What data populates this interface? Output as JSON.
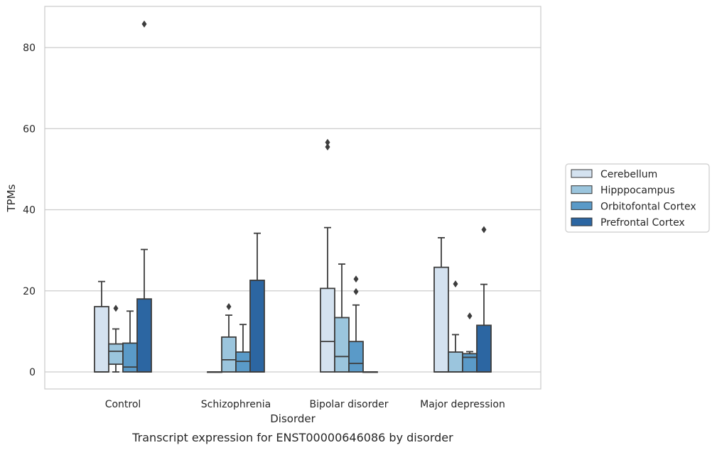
{
  "chart_data": {
    "type": "box",
    "title": "Transcript expression for ENST00000646086 by disorder",
    "xlabel": "Disorder",
    "ylabel": "TPMs",
    "ylim": [
      -4.2,
      90.5
    ],
    "yticks": [
      0,
      20,
      40,
      60,
      80
    ],
    "grid": true,
    "legend_position": "right",
    "categories": [
      "Control",
      "Schizophrenia",
      "Bipolar disorder",
      "Major depression"
    ],
    "series": [
      {
        "name": "Cerebellum",
        "color": "#d4e2f0",
        "boxes": [
          {
            "whislo": 0,
            "q1": 0,
            "med": 0,
            "q3": 16.1,
            "whishi": 22.3,
            "fliers": []
          },
          {
            "whislo": 0,
            "q1": 0,
            "med": 0,
            "q3": 0,
            "whishi": 0,
            "fliers": []
          },
          {
            "whislo": 0,
            "q1": 0,
            "med": 7.5,
            "q3": 20.6,
            "whishi": 35.6,
            "fliers": [
              55.5,
              56.6
            ]
          },
          {
            "whislo": 0,
            "q1": 0,
            "med": 0,
            "q3": 25.8,
            "whishi": 33.1,
            "fliers": []
          }
        ]
      },
      {
        "name": "Hipppocampus",
        "color": "#9bc5dd",
        "boxes": [
          {
            "whislo": 0,
            "q1": 1.9,
            "med": 5.1,
            "q3": 6.9,
            "whishi": 10.6,
            "fliers": [
              15.7
            ]
          },
          {
            "whislo": 0,
            "q1": 0,
            "med": 3.0,
            "q3": 8.6,
            "whishi": 14.0,
            "fliers": [
              16.1
            ]
          },
          {
            "whislo": 0,
            "q1": 0,
            "med": 3.8,
            "q3": 13.4,
            "whishi": 26.6,
            "fliers": []
          },
          {
            "whislo": 0,
            "q1": 0,
            "med": 0,
            "q3": 4.9,
            "whishi": 9.2,
            "fliers": [
              21.7
            ]
          }
        ]
      },
      {
        "name": "Orbitofontal Cortex",
        "color": "#5a9ac8",
        "boxes": [
          {
            "whislo": 0,
            "q1": 0,
            "med": 1.2,
            "q3": 7.1,
            "whishi": 15.0,
            "fliers": []
          },
          {
            "whislo": 0,
            "q1": 0,
            "med": 2.6,
            "q3": 4.9,
            "whishi": 11.7,
            "fliers": []
          },
          {
            "whislo": 0,
            "q1": 0,
            "med": 2.1,
            "q3": 7.5,
            "whishi": 16.5,
            "fliers": [
              19.8,
              22.9
            ]
          },
          {
            "whislo": 0,
            "q1": 0,
            "med": 3.6,
            "q3": 4.5,
            "whishi": 5.0,
            "fliers": [
              13.8
            ]
          }
        ]
      },
      {
        "name": "Prefrontal Cortex",
        "color": "#2c66a2",
        "boxes": [
          {
            "whislo": 0,
            "q1": 0,
            "med": 0,
            "q3": 18.0,
            "whishi": 30.2,
            "fliers": [
              85.8
            ]
          },
          {
            "whislo": 0,
            "q1": 0,
            "med": 0,
            "q3": 22.6,
            "whishi": 34.2,
            "fliers": []
          },
          {
            "whislo": 0,
            "q1": 0,
            "med": 0,
            "q3": 0,
            "whishi": 0,
            "fliers": []
          },
          {
            "whislo": 0,
            "q1": 0,
            "med": 0,
            "q3": 11.5,
            "whishi": 21.6,
            "fliers": [
              35.1
            ]
          }
        ]
      }
    ]
  }
}
